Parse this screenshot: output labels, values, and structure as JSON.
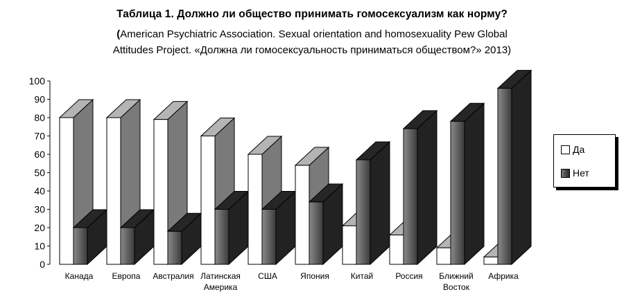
{
  "chart_data": {
    "type": "bar",
    "title": "Таблица 1. Должно ли общество принимать гомосексуализм как норму?",
    "subtitle_lead": "(",
    "subtitle_line1": "American Psychiatric Association. Sexual orientation and homosexuality Pew Global",
    "subtitle_line2": "Attitudes Project. «Должна ли гомосексуальность приниматься обществом?» 2013)",
    "categories": [
      [
        "Канада"
      ],
      [
        "Европа"
      ],
      [
        "Австралия"
      ],
      [
        "Латинская",
        "Америка"
      ],
      [
        "США"
      ],
      [
        "Япония"
      ],
      [
        "Китай"
      ],
      [
        "Россия"
      ],
      [
        "Ближний",
        "Восток"
      ],
      [
        "Африка"
      ]
    ],
    "series": [
      {
        "name": "Да",
        "values": [
          80,
          80,
          79,
          70,
          60,
          54,
          21,
          16,
          9,
          4
        ]
      },
      {
        "name": "Нет",
        "values": [
          20,
          20,
          18,
          30,
          30,
          34,
          57,
          74,
          78,
          96
        ]
      }
    ],
    "ylim": [
      0,
      100
    ],
    "yticks": [
      0,
      10,
      20,
      30,
      40,
      50,
      60,
      70,
      80,
      90,
      100
    ],
    "xlabel": "",
    "ylabel": "",
    "legend_position": "right",
    "colors": {
      "da_face": "#ffffff",
      "da_top": "#b4b4b4",
      "da_side": "#7a7a7a",
      "net_face_light": "#8a8a8a",
      "net_face_dark": "#3a3a3a",
      "net_top": "#262626",
      "net_side": "#222222",
      "outline": "#000000"
    }
  }
}
